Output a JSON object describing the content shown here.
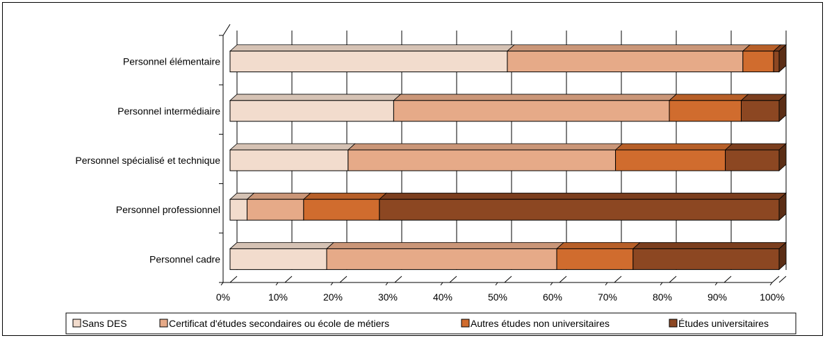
{
  "chart_data": {
    "type": "bar",
    "orientation": "horizontal",
    "stacked": "percent",
    "three_d": true,
    "categories": [
      "Personnel élémentaire",
      "Personnel intermédiaire",
      "Personnel spécialisé et technique",
      "Personnel professionnel",
      "Personnel cadre"
    ],
    "series": [
      {
        "name": "Sans DES",
        "color": "#f2dccd",
        "values": [
          50.5,
          29.8,
          21.5,
          3.1,
          17.6
        ]
      },
      {
        "name": "Certificat d'études secondaires ou école de métiers",
        "color": "#e6aa88",
        "values": [
          42.9,
          50.2,
          48.7,
          10.3,
          41.9
        ]
      },
      {
        "name": "Autres études non universitaires",
        "color": "#d06c2e",
        "values": [
          5.6,
          13.1,
          20.0,
          13.8,
          13.9
        ]
      },
      {
        "name": "Études universitaires",
        "color": "#8c4722",
        "values": [
          1.0,
          6.9,
          9.8,
          72.8,
          26.6
        ]
      }
    ],
    "x_ticks": [
      "0%",
      "10%",
      "20%",
      "30%",
      "40%",
      "50%",
      "60%",
      "70%",
      "80%",
      "90%",
      "100%"
    ],
    "xlim": [
      0,
      100
    ],
    "grid": true,
    "legend_position": "bottom",
    "title": "",
    "xlabel": "",
    "ylabel": ""
  }
}
